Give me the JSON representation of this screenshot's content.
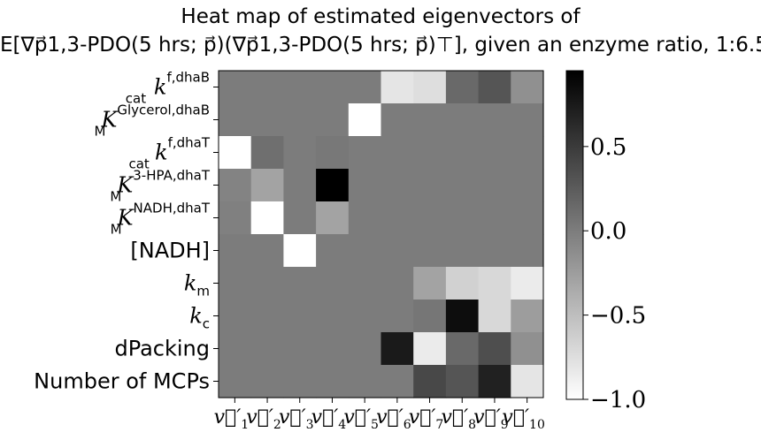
{
  "chart_data": {
    "type": "heatmap",
    "title": "Heat map of estimated eigenvectors of",
    "subtitle": "E[∇p⃗1,3-PDO(5 hrs; p⃗)(∇p⃗1,3-PDO(5 hrs; p⃗)⊤], given an enzyme ratio, 1:6.5",
    "y_labels": [
      {
        "base": "k",
        "sub": "cat",
        "sup": "f,dhaB",
        "italic": true
      },
      {
        "base": "K",
        "sub": "M",
        "sup": "Glycerol,dhaB",
        "italic": true
      },
      {
        "base": "k",
        "sub": "cat",
        "sup": "f,dhaT",
        "italic": true
      },
      {
        "base": "K",
        "sub": "M",
        "sup": "3-HPA,dhaT",
        "italic": true
      },
      {
        "base": "K",
        "sub": "M",
        "sup": "NADH,dhaT",
        "italic": true
      },
      {
        "base": "[NADH]",
        "sub": "",
        "sup": "",
        "italic": false
      },
      {
        "base": "k",
        "sub": "m",
        "sup": "",
        "italic": true
      },
      {
        "base": "k",
        "sub": "c",
        "sup": "",
        "italic": true
      },
      {
        "base": "dPacking",
        "sub": "",
        "sup": "",
        "italic": false
      },
      {
        "base": "Number of MCPs",
        "sub": "",
        "sup": "",
        "italic": false
      }
    ],
    "x_labels": [
      {
        "base": "v⃗′",
        "sub": "1"
      },
      {
        "base": "v⃗′",
        "sub": "2"
      },
      {
        "base": "v⃗′",
        "sub": "3"
      },
      {
        "base": "v⃗′",
        "sub": "4"
      },
      {
        "base": "v⃗′",
        "sub": "5"
      },
      {
        "base": "v⃗′",
        "sub": "6"
      },
      {
        "base": "v⃗′",
        "sub": "7"
      },
      {
        "base": "v⃗′",
        "sub": "8"
      },
      {
        "base": "v⃗′",
        "sub": "9"
      },
      {
        "base": "v⃗′",
        "sub": "10"
      }
    ],
    "values": [
      [
        0,
        0,
        0,
        0,
        0,
        -0.8,
        -0.75,
        0.15,
        0.3,
        -0.15
      ],
      [
        0,
        0,
        0,
        0,
        -1.0,
        0,
        0,
        0,
        0,
        0
      ],
      [
        -1.0,
        0.1,
        0,
        0.03,
        0,
        0,
        0,
        0,
        0,
        0
      ],
      [
        -0.05,
        -0.3,
        0,
        0.95,
        0,
        0,
        0,
        0,
        0,
        0
      ],
      [
        -0.03,
        -1.0,
        0,
        -0.3,
        0,
        0,
        0,
        0,
        0,
        0
      ],
      [
        0,
        0,
        -1.0,
        0,
        0,
        0,
        0,
        0,
        0,
        0
      ],
      [
        0,
        0,
        0,
        0,
        0,
        0,
        -0.3,
        -0.65,
        -0.7,
        -0.85
      ],
      [
        0,
        0,
        0,
        0,
        0,
        0,
        0.05,
        0.85,
        -0.7,
        -0.25
      ],
      [
        0,
        0,
        0,
        0,
        0,
        0.75,
        -0.85,
        0.15,
        0.35,
        -0.15
      ],
      [
        0,
        0,
        0,
        0,
        0,
        0,
        0.4,
        0.3,
        0.7,
        -0.8
      ]
    ],
    "colorbar": {
      "min": -1.0,
      "max": 0.95,
      "ticks": [
        0.5,
        0.0,
        -0.5,
        -1.0
      ],
      "tick_labels": [
        "0.5",
        "0.0",
        "−0.5",
        "−1.0"
      ],
      "colormap": "greys"
    }
  }
}
